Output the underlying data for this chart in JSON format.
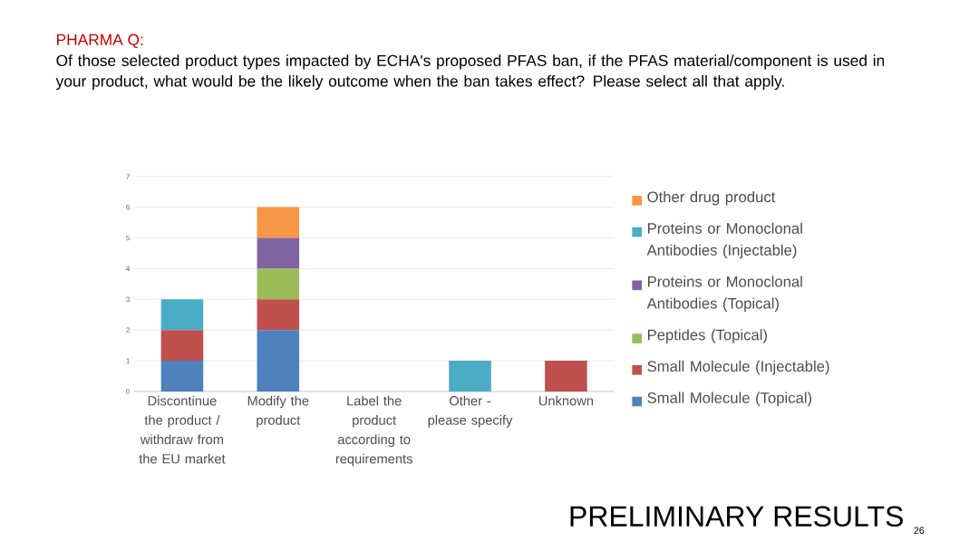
{
  "chart_data": {
    "type": "bar",
    "title": "PHARMA Q:",
    "subtitle": "Of those selected product types impacted by ECHA's proposed PFAS ban, if the PFAS material/component is used in your product, what would be the likely outcome when the ban takes effect? Please select all that apply.",
    "categories": [
      "Discontinue the product / withdraw from the EU market",
      "Modify the product",
      "Label the product according to requirements",
      "Other - please specify",
      "Unknown"
    ],
    "series": [
      {
        "name": "Small Molecule (Topical)",
        "color": "#4f81bd",
        "values": [
          1,
          2,
          0,
          0,
          0
        ]
      },
      {
        "name": "Small Molecule (Injectable)",
        "color": "#c0504d",
        "values": [
          1,
          1,
          0,
          0,
          1
        ]
      },
      {
        "name": "Peptides (Topical)",
        "color": "#9bbb59",
        "values": [
          0,
          1,
          0,
          0,
          0
        ]
      },
      {
        "name": "Proteins or Monoclonal Antibodies (Topical)",
        "color": "#8064a2",
        "values": [
          0,
          1,
          0,
          0,
          0
        ]
      },
      {
        "name": "Proteins or Monoclonal Antibodies (Injectable)",
        "color": "#4bacc6",
        "values": [
          1,
          0,
          0,
          1,
          0
        ]
      },
      {
        "name": "Other drug product",
        "color": "#f79646",
        "values": [
          0,
          1,
          0,
          0,
          0
        ]
      }
    ],
    "stacked": true,
    "ylim": [
      0,
      7
    ],
    "yticks": [
      0,
      1,
      2,
      3,
      4,
      5,
      6,
      7
    ],
    "grid": "y",
    "legend": "right",
    "annotations": [
      "PRELIMINARY RESULTS",
      "26"
    ]
  }
}
